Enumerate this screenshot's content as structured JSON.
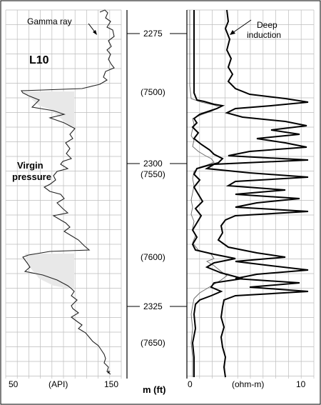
{
  "gamma_panel": {
    "curve_label": "Gamma ray",
    "zone_label": "L10",
    "pressure_label_line1": "Virgin",
    "pressure_label_line2": "pressure",
    "scale_min": "50",
    "scale_unit": "(API)",
    "scale_max": "150"
  },
  "depth_track": {
    "unit_label": "m (ft)",
    "metres": [
      {
        "value": "2275",
        "row": 0.0
      },
      {
        "value": "2300",
        "row": 1.0
      },
      {
        "value": "2325",
        "row": 2.0
      }
    ],
    "feet": [
      {
        "value": "(7500)"
      },
      {
        "value": "(7550)"
      },
      {
        "value": "(7600)"
      },
      {
        "value": "(7650)"
      }
    ]
  },
  "resistivity_panel": {
    "curve_label_line1": "Deep",
    "curve_label_line2": "induction",
    "scale_min": "0",
    "scale_unit": "(ohm-m)",
    "scale_max": "10"
  },
  "colors": {
    "grid": "#bdbdbd",
    "curve": "#222222",
    "shade": "#e8e8e8",
    "frame": "#000000"
  }
}
